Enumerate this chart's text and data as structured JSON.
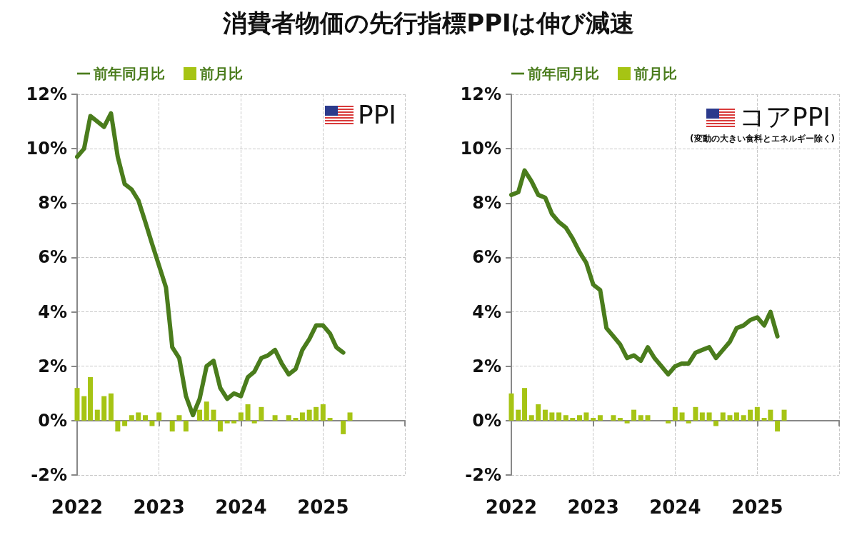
{
  "chart_data": [
    {
      "type": "bar",
      "title": "PPI",
      "annotations": [
        "消費者物価の先行指標PPIは伸び減速"
      ],
      "x": [
        "2022-01",
        "2022-02",
        "2022-03",
        "2022-04",
        "2022-05",
        "2022-06",
        "2022-07",
        "2022-08",
        "2022-09",
        "2022-10",
        "2022-11",
        "2022-12",
        "2023-01",
        "2023-02",
        "2023-03",
        "2023-04",
        "2023-05",
        "2023-06",
        "2023-07",
        "2023-08",
        "2023-09",
        "2023-10",
        "2023-11",
        "2023-12",
        "2024-01",
        "2024-02",
        "2024-03",
        "2024-04",
        "2024-05",
        "2024-06",
        "2024-07",
        "2024-08",
        "2024-09",
        "2024-10",
        "2024-11",
        "2024-12",
        "2025-01",
        "2025-02",
        "2025-03",
        "2025-04",
        "2025-05"
      ],
      "series": [
        {
          "name": "前年同月比",
          "type": "line",
          "color": "#4a7c1c",
          "values": [
            9.7,
            10.0,
            11.2,
            11.0,
            10.8,
            11.3,
            9.7,
            8.7,
            8.5,
            8.1,
            7.3,
            6.5,
            5.7,
            4.9,
            2.7,
            2.3,
            0.9,
            0.2,
            0.8,
            2.0,
            2.2,
            1.2,
            0.8,
            1.0,
            0.9,
            1.6,
            1.8,
            2.3,
            2.4,
            2.6,
            2.1,
            1.7,
            1.9,
            2.6,
            3.0,
            3.5,
            3.5,
            3.2,
            2.7,
            2.5,
            null
          ]
        },
        {
          "name": "前月比",
          "color": "#a6c414",
          "values": [
            1.2,
            0.9,
            1.6,
            0.4,
            0.9,
            1.0,
            -0.4,
            -0.2,
            0.2,
            0.3,
            0.2,
            -0.2,
            0.3,
            0,
            -0.4,
            0.2,
            -0.4,
            0,
            0.4,
            0.7,
            0.4,
            -0.4,
            -0.1,
            -0.1,
            0.3,
            0.6,
            -0.1,
            0.5,
            0,
            0.2,
            0,
            0.2,
            0.1,
            0.3,
            0.4,
            0.5,
            0.6,
            0.1,
            0,
            -0.5,
            0.3
          ]
        }
      ],
      "xlim": [
        "2022-01",
        "2026-01"
      ],
      "xticks": [
        {
          "value": "2022",
          "label": "2022"
        },
        {
          "value": "2023",
          "label": "2023"
        },
        {
          "value": "2024",
          "label": "2024"
        },
        {
          "value": "2025",
          "label": "2025"
        },
        {
          "value": "2026",
          "label": null
        }
      ],
      "ylim": [
        -2,
        12
      ],
      "yticks": [
        {
          "value": -2,
          "label": "-2%"
        },
        {
          "value": 0,
          "label": "0%"
        },
        {
          "value": 2,
          "label": "2%"
        },
        {
          "value": 4,
          "label": "4%"
        },
        {
          "value": 6,
          "label": "6%"
        },
        {
          "value": 8,
          "label": "8%"
        },
        {
          "value": 10,
          "label": "10%"
        },
        {
          "value": 12,
          "label": "12%"
        }
      ],
      "grid": true,
      "legend": "top left",
      "marker": "none",
      "line_style": "solid"
    },
    {
      "type": "bar",
      "title": "コアPPI",
      "subtitle": "(変動の大きい食料とエネルギー除く)",
      "x": [
        "2022-01",
        "2022-02",
        "2022-03",
        "2022-04",
        "2022-05",
        "2022-06",
        "2022-07",
        "2022-08",
        "2022-09",
        "2022-10",
        "2022-11",
        "2022-12",
        "2023-01",
        "2023-02",
        "2023-03",
        "2023-04",
        "2023-05",
        "2023-06",
        "2023-07",
        "2023-08",
        "2023-09",
        "2023-10",
        "2023-11",
        "2023-12",
        "2024-01",
        "2024-02",
        "2024-03",
        "2024-04",
        "2024-05",
        "2024-06",
        "2024-07",
        "2024-08",
        "2024-09",
        "2024-10",
        "2024-11",
        "2024-12",
        "2025-01",
        "2025-02",
        "2025-03",
        "2025-04",
        "2025-05"
      ],
      "series": [
        {
          "name": "前年同月比",
          "type": "line",
          "color": "#4a7c1c",
          "values": [
            8.3,
            8.4,
            9.2,
            8.8,
            8.3,
            8.2,
            7.6,
            7.3,
            7.1,
            6.7,
            6.2,
            5.8,
            5.0,
            4.8,
            3.4,
            3.1,
            2.8,
            2.3,
            2.4,
            2.2,
            2.7,
            2.3,
            2.0,
            1.7,
            2.0,
            2.1,
            2.1,
            2.5,
            2.6,
            2.7,
            2.3,
            2.6,
            2.9,
            3.4,
            3.5,
            3.7,
            3.8,
            3.5,
            4.0,
            3.1,
            null
          ]
        },
        {
          "name": "前月比",
          "color": "#a6c414",
          "values": [
            1.0,
            0.4,
            1.2,
            0.2,
            0.6,
            0.4,
            0.3,
            0.3,
            0.2,
            0.1,
            0.2,
            0.3,
            0.1,
            0.2,
            0,
            0.2,
            0.1,
            -0.1,
            0.4,
            0.2,
            0.2,
            0,
            0,
            -0.1,
            0.5,
            0.3,
            -0.1,
            0.5,
            0.3,
            0.3,
            -0.2,
            0.3,
            0.2,
            0.3,
            0.2,
            0.4,
            0.5,
            0.1,
            0.4,
            -0.4,
            0.4
          ]
        }
      ],
      "xlim": [
        "2022-01",
        "2026-01"
      ],
      "xticks": [
        {
          "value": "2022",
          "label": "2022"
        },
        {
          "value": "2023",
          "label": "2023"
        },
        {
          "value": "2024",
          "label": "2024"
        },
        {
          "value": "2025",
          "label": "2025"
        },
        {
          "value": "2026",
          "label": null
        }
      ],
      "ylim": [
        -2,
        12
      ],
      "yticks": [
        {
          "value": -2,
          "label": "-2%"
        },
        {
          "value": 0,
          "label": "0%"
        },
        {
          "value": 2,
          "label": "2%"
        },
        {
          "value": 4,
          "label": "4%"
        },
        {
          "value": 6,
          "label": "6%"
        },
        {
          "value": 8,
          "label": "8%"
        },
        {
          "value": 10,
          "label": "10%"
        },
        {
          "value": 12,
          "label": "12%"
        }
      ],
      "grid": true,
      "legend": "top left",
      "marker": "none",
      "line_style": "solid"
    }
  ]
}
